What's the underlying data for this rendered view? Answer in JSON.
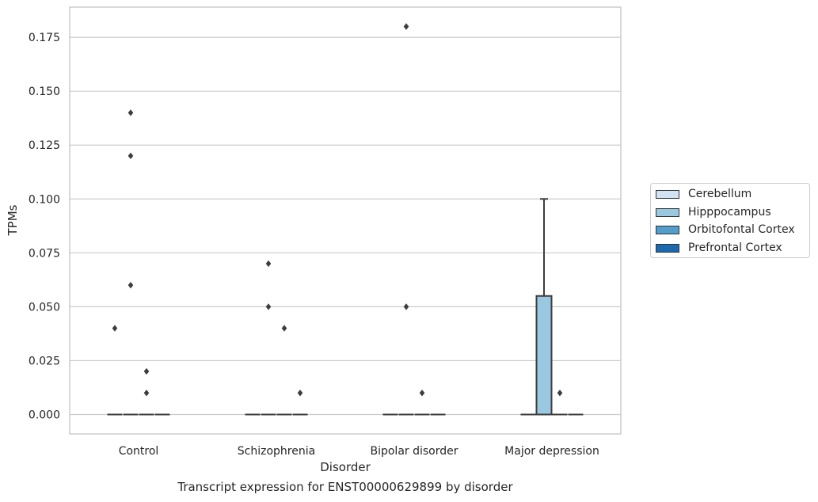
{
  "chart_data": {
    "type": "box",
    "title": "",
    "caption": "Transcript expression for ENST00000629899 by disorder",
    "xlabel": "Disorder",
    "ylabel": "TPMs",
    "categories": [
      "Control",
      "Schizophrenia",
      "Bipolar disorder",
      "Major depression"
    ],
    "yticks": [
      "0.000",
      "0.025",
      "0.050",
      "0.075",
      "0.100",
      "0.125",
      "0.150",
      "0.175"
    ],
    "ylim": [
      -0.009,
      0.189
    ],
    "grid": "horizontal",
    "legend_position": "right",
    "series": [
      {
        "name": "Cerebellum",
        "color": "#d2e3f3"
      },
      {
        "name": "Hipppocampus",
        "color": "#9ac8e0"
      },
      {
        "name": "Orbitofontal Cortex",
        "color": "#529dcc"
      },
      {
        "name": "Prefrontal Cortex",
        "color": "#1b69af"
      }
    ],
    "boxes": [
      {
        "category": "Control",
        "series": "Hipppocampus",
        "q1": 0,
        "median": 0,
        "q3": 0,
        "whisker_low": 0,
        "whisker_high": 0,
        "outliers": [
          0.14,
          0.12,
          0.06
        ]
      },
      {
        "category": "Control",
        "series": "Cerebellum",
        "q1": 0,
        "median": 0,
        "q3": 0,
        "whisker_low": 0,
        "whisker_high": 0,
        "outliers": [
          0.04
        ]
      },
      {
        "category": "Control",
        "series": "Orbitofontal Cortex",
        "q1": 0,
        "median": 0,
        "q3": 0,
        "whisker_low": 0,
        "whisker_high": 0,
        "outliers": [
          0.02,
          0.01
        ]
      },
      {
        "category": "Control",
        "series": "Prefrontal Cortex",
        "q1": 0,
        "median": 0,
        "q3": 0,
        "whisker_low": 0,
        "whisker_high": 0,
        "outliers": []
      },
      {
        "category": "Schizophrenia",
        "series": "Cerebellum",
        "q1": 0,
        "median": 0,
        "q3": 0,
        "whisker_low": 0,
        "whisker_high": 0,
        "outliers": []
      },
      {
        "category": "Schizophrenia",
        "series": "Hipppocampus",
        "q1": 0,
        "median": 0,
        "q3": 0,
        "whisker_low": 0,
        "whisker_high": 0,
        "outliers": [
          0.07,
          0.05
        ]
      },
      {
        "category": "Schizophrenia",
        "series": "Orbitofontal Cortex",
        "q1": 0,
        "median": 0,
        "q3": 0,
        "whisker_low": 0,
        "whisker_high": 0,
        "outliers": [
          0.04
        ]
      },
      {
        "category": "Schizophrenia",
        "series": "Prefrontal Cortex",
        "q1": 0,
        "median": 0,
        "q3": 0,
        "whisker_low": 0,
        "whisker_high": 0,
        "outliers": [
          0.01
        ]
      },
      {
        "category": "Bipolar disorder",
        "series": "Cerebellum",
        "q1": 0,
        "median": 0,
        "q3": 0,
        "whisker_low": 0,
        "whisker_high": 0,
        "outliers": []
      },
      {
        "category": "Bipolar disorder",
        "series": "Hipppocampus",
        "q1": 0,
        "median": 0,
        "q3": 0,
        "whisker_low": 0,
        "whisker_high": 0,
        "outliers": [
          0.18,
          0.05
        ]
      },
      {
        "category": "Bipolar disorder",
        "series": "Orbitofontal Cortex",
        "q1": 0,
        "median": 0,
        "q3": 0,
        "whisker_low": 0,
        "whisker_high": 0,
        "outliers": [
          0.01
        ]
      },
      {
        "category": "Bipolar disorder",
        "series": "Prefrontal Cortex",
        "q1": 0,
        "median": 0,
        "q3": 0,
        "whisker_low": 0,
        "whisker_high": 0,
        "outliers": []
      },
      {
        "category": "Major depression",
        "series": "Cerebellum",
        "q1": 0,
        "median": 0,
        "q3": 0,
        "whisker_low": 0,
        "whisker_high": 0,
        "outliers": []
      },
      {
        "category": "Major depression",
        "series": "Hipppocampus",
        "q1": 0,
        "median": 0,
        "q3": 0.055,
        "whisker_low": 0,
        "whisker_high": 0.1,
        "outliers": []
      },
      {
        "category": "Major depression",
        "series": "Orbitofontal Cortex",
        "q1": 0,
        "median": 0,
        "q3": 0,
        "whisker_low": 0,
        "whisker_high": 0,
        "outliers": [
          0.01
        ]
      },
      {
        "category": "Major depression",
        "series": "Prefrontal Cortex",
        "q1": 0,
        "median": 0,
        "q3": 0,
        "whisker_low": 0,
        "whisker_high": 0,
        "outliers": []
      }
    ]
  }
}
